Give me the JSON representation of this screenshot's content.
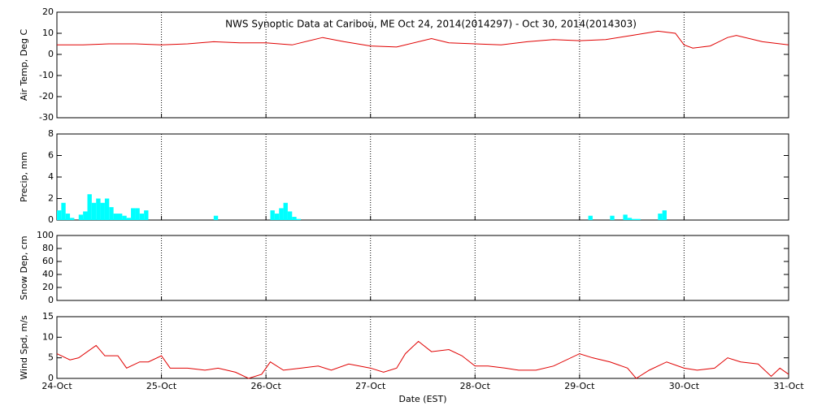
{
  "chart_data": [
    {
      "type": "line",
      "title": "NWS Synoptic Data at Caribou, ME   Oct 24, 2014(2014297) - Oct 30, 2014(2014303)",
      "ylabel": "Air Temp, Deg C",
      "color": "#e00000",
      "x": [
        0,
        6,
        12,
        18,
        24,
        30,
        36,
        42,
        48,
        54,
        61,
        66,
        72,
        78,
        86,
        90,
        96,
        102,
        108,
        114,
        120,
        126,
        132,
        138,
        142,
        144,
        146,
        150,
        154,
        156,
        162,
        168
      ],
      "values": [
        4.5,
        4.5,
        5,
        5,
        4.5,
        5,
        6,
        5.5,
        5.5,
        4.5,
        8,
        6,
        4,
        3.5,
        7.5,
        5.5,
        5,
        4.5,
        6,
        7,
        6.5,
        7,
        9,
        11,
        10,
        4.5,
        3,
        4,
        8,
        9,
        6,
        4.5
      ],
      "xlim": [
        0,
        168
      ],
      "xticks": [
        {
          "value": 0,
          "label": "24-Oct"
        },
        {
          "value": 24,
          "label": "25-Oct"
        },
        {
          "value": 48,
          "label": "26-Oct"
        },
        {
          "value": 72,
          "label": "27-Oct"
        },
        {
          "value": 96,
          "label": "28-Oct"
        },
        {
          "value": 120,
          "label": "29-Oct"
        },
        {
          "value": 144,
          "label": "30-Oct"
        },
        {
          "value": 168,
          "label": "31-Oct"
        }
      ],
      "ylim": [
        -30,
        20
      ],
      "yticks": [
        -30,
        -20,
        -10,
        0,
        10,
        20
      ],
      "grid": true
    },
    {
      "type": "bar",
      "ylabel": "Precip, mm",
      "color": "#00ffff",
      "x": [
        0,
        1,
        2,
        3,
        5,
        6,
        7,
        8,
        9,
        10,
        11,
        12,
        13,
        14,
        15,
        16,
        17,
        18,
        19,
        20,
        36,
        49,
        50,
        51,
        52,
        53,
        54,
        55,
        122,
        127,
        130,
        131,
        132,
        133,
        138,
        139
      ],
      "values": [
        0.9,
        1.6,
        0.6,
        0.2,
        0.5,
        0.8,
        2.4,
        1.6,
        2.0,
        1.6,
        2.0,
        1.2,
        0.6,
        0.6,
        0.4,
        0.2,
        1.1,
        1.1,
        0.6,
        0.9,
        0.4,
        0.9,
        0.6,
        1.1,
        1.6,
        0.8,
        0.3,
        0.1,
        0.4,
        0.4,
        0.5,
        0.2,
        0.1,
        0.1,
        0.6,
        0.9
      ],
      "xlim": [
        0,
        168
      ],
      "xticks": [
        {
          "value": 0,
          "label": "24-Oct"
        },
        {
          "value": 24,
          "label": "25-Oct"
        },
        {
          "value": 48,
          "label": "26-Oct"
        },
        {
          "value": 72,
          "label": "27-Oct"
        },
        {
          "value": 96,
          "label": "28-Oct"
        },
        {
          "value": 120,
          "label": "29-Oct"
        },
        {
          "value": 144,
          "label": "30-Oct"
        },
        {
          "value": 168,
          "label": "31-Oct"
        }
      ],
      "ylim": [
        0,
        8
      ],
      "yticks": [
        0,
        2,
        4,
        6,
        8
      ],
      "grid": true
    },
    {
      "type": "line",
      "ylabel": "Snow Dep, cm",
      "xlim": [
        0,
        168
      ],
      "xticks": [
        {
          "value": 0,
          "label": "24-Oct"
        },
        {
          "value": 24,
          "label": "25-Oct"
        },
        {
          "value": 48,
          "label": "26-Oct"
        },
        {
          "value": 72,
          "label": "27-Oct"
        },
        {
          "value": 96,
          "label": "28-Oct"
        },
        {
          "value": 120,
          "label": "29-Oct"
        },
        {
          "value": 144,
          "label": "30-Oct"
        },
        {
          "value": 168,
          "label": "31-Oct"
        }
      ],
      "ylim": [
        0,
        100
      ],
      "yticks": [
        0,
        20,
        40,
        60,
        80,
        100
      ],
      "grid": true
    },
    {
      "type": "line",
      "ylabel": "Wind Spd, m/s",
      "xlabel": "Date (EST)",
      "color": "#e00000",
      "x": [
        0,
        3,
        5,
        9,
        11,
        14,
        16,
        19,
        21,
        24,
        26,
        30,
        34,
        37,
        41,
        44,
        47,
        49,
        52,
        56,
        60,
        63,
        67,
        72,
        75,
        78,
        80,
        83,
        86,
        90,
        93,
        96,
        99,
        103,
        106,
        110,
        114,
        120,
        123,
        127,
        131,
        133,
        136,
        140,
        144,
        147,
        151,
        154,
        157,
        161,
        164,
        166,
        168
      ],
      "values": [
        6,
        4.5,
        5,
        8,
        5.5,
        5.5,
        2.5,
        4,
        4,
        5.5,
        2.5,
        2.5,
        2,
        2.5,
        1.5,
        0,
        1,
        4,
        2,
        2.5,
        3,
        2,
        3.5,
        2.5,
        1.5,
        2.5,
        6,
        9,
        6.5,
        7,
        5.5,
        3,
        3,
        2.5,
        2,
        2,
        3,
        6,
        5,
        4,
        2.5,
        0,
        2,
        4,
        2.5,
        2,
        2.5,
        5,
        4,
        3.5,
        0.5,
        2.5,
        1
      ],
      "xlim": [
        0,
        168
      ],
      "xticks": [
        {
          "value": 0,
          "label": "24-Oct"
        },
        {
          "value": 24,
          "label": "25-Oct"
        },
        {
          "value": 48,
          "label": "26-Oct"
        },
        {
          "value": 72,
          "label": "27-Oct"
        },
        {
          "value": 96,
          "label": "28-Oct"
        },
        {
          "value": 120,
          "label": "29-Oct"
        },
        {
          "value": 144,
          "label": "30-Oct"
        },
        {
          "value": 168,
          "label": "31-Oct"
        }
      ],
      "ylim": [
        0,
        15
      ],
      "yticks": [
        0,
        5,
        10,
        15
      ],
      "grid": true
    }
  ]
}
